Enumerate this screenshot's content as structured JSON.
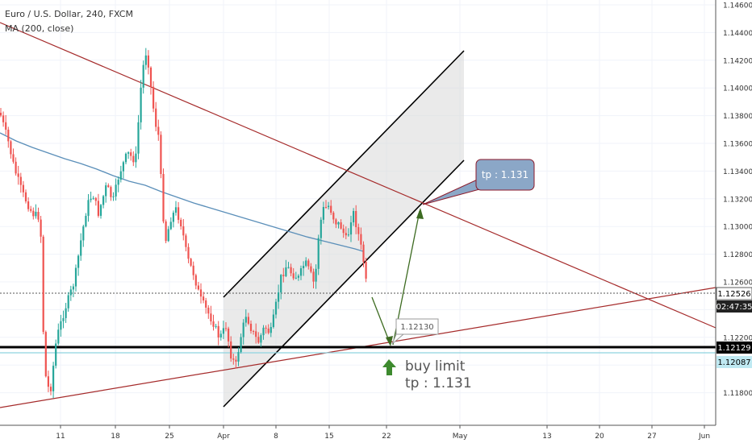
{
  "header": {
    "symbol_line": "Euro / U.S. Dollar, 240, FXCM",
    "indicator_line": "MA (200, close)"
  },
  "price_axis": {
    "ticks": [
      "1.14600",
      "1.14400",
      "1.14200",
      "1.14000",
      "1.13800",
      "1.13600",
      "1.13400",
      "1.13200",
      "1.13000",
      "1.12800",
      "1.12600",
      "1.12400",
      "1.12200",
      "1.12000",
      "1.11800"
    ],
    "current_price": "1.12526",
    "countdown": "02:47:35",
    "level_price": "1.12129",
    "level2_price": "1.12087"
  },
  "time_axis": {
    "ticks": [
      "11",
      "18",
      "25",
      "Apr",
      "8",
      "15",
      "22",
      "May",
      "13",
      "20",
      "27",
      "Jun"
    ]
  },
  "annotations": {
    "tp_callout": "tp : 1.131",
    "level_label": "1.12130",
    "buy_line1": "buy limit",
    "buy_line2": "tp : 1.131"
  },
  "colors": {
    "up_candle": "#26a69a",
    "down_candle": "#ef5350",
    "ma_line": "#5b8fb9",
    "trend_line": "#a52a2a",
    "support_line": "#000000",
    "level2_line": "#8fd3e0",
    "current_label_bg": "#ffffff",
    "countdown_bg": "#222222",
    "level_label_bg": "#000000",
    "level2_label_bg": "#bfe9f2",
    "callout_bg": "#8ba7c7",
    "arrow_green": "#3d6b21",
    "buy_text": "#555555"
  },
  "chart_data": {
    "type": "candlestick",
    "y_range": [
      1.1162,
      1.1468
    ],
    "x_range": [
      "2019-03-04",
      "2019-06-02"
    ],
    "moving_average": "MA (200, close)"
  }
}
